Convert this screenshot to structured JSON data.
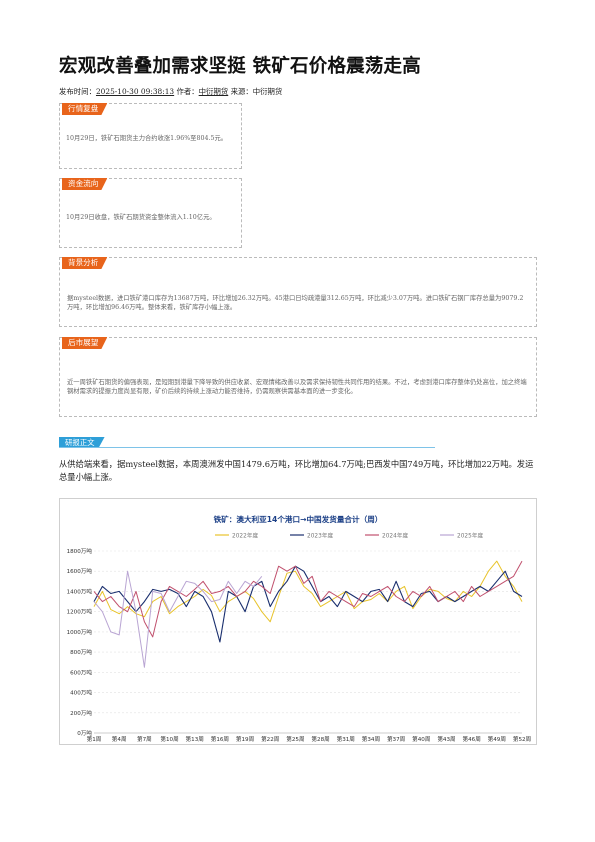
{
  "article": {
    "title": "宏观改善叠加需求坚挺 铁矿石价格震荡走高",
    "meta_prefix": "发布时间：",
    "publish_time": "2025-10-30 09:38:13",
    "author_label": " 作者：",
    "author": "中衍期货",
    "source_label": " 来源：",
    "source": "中衍期货"
  },
  "boxes": {
    "market_review": {
      "tag": "行情复盘",
      "text": "10月29日，铁矿石期货主力合约收涨1.96%至804.5元。"
    },
    "fund_flow": {
      "tag": "资金流向",
      "text": "10月29日收盘，铁矿石期货资金整体流入1.10亿元。"
    },
    "background": {
      "tag": "背景分析",
      "text": "据mysteel数据，进口铁矿港口库存为13687万吨，环比增加26.32万吨。45港口日均疏港量312.65万吨，环比减少3.07万吨。进口铁矿石钢厂库存总量为9079.2万吨，环比增加96.46万吨。整体来看，铁矿库存小幅上涨。"
    },
    "outlook": {
      "tag": "后市展望",
      "text": "近一周铁矿石期货的偏强表现，是短期到港量下降导致的供应收紧、宏观情绪改善以及需求保持韧性共同作用的结果。不过，考虑到港口库存整体仍处高位，加之终端钢材需求的提振力度尚显有限，矿价后续的持续上涨动力能否维持，仍需观察供需基本面的进一步变化。"
    }
  },
  "report": {
    "tag": "研报正文",
    "paragraph": "从供给端来看，据mysteel数据，本周澳洲发中国1479.6万吨，环比增加64.7万吨;巴西发中国749万吨，环比增加22万吨。发运总量小幅上涨。"
  },
  "chart_data": {
    "type": "line",
    "title": "铁矿：澳大利亚14个港口→中国发货量合计（周）",
    "x_ticks": [
      "第1周",
      "第4周",
      "第7周",
      "第10周",
      "第13周",
      "第16周",
      "第19周",
      "第22周",
      "第25周",
      "第28周",
      "第31周",
      "第34周",
      "第37周",
      "第40周",
      "第43周",
      "第46周",
      "第49周",
      "第52周"
    ],
    "y_ticks": [
      "0万吨",
      "200万吨",
      "400万吨",
      "600万吨",
      "800万吨",
      "1000万吨",
      "1200万吨",
      "1400万吨",
      "1600万吨",
      "1800万吨"
    ],
    "ylim": [
      0,
      1800
    ],
    "xlim": [
      1,
      52
    ],
    "legend_position": "top",
    "series": [
      {
        "name": "2022年度",
        "color": "#e8c32a",
        "values": [
          1250,
          1400,
          1220,
          1180,
          1250,
          1180,
          1150,
          1300,
          1350,
          1180,
          1250,
          1300,
          1350,
          1420,
          1360,
          1200,
          1300,
          1350,
          1400,
          1330,
          1200,
          1100,
          1350,
          1580,
          1600,
          1450,
          1380,
          1250,
          1300,
          1350,
          1400,
          1230,
          1300,
          1320,
          1380,
          1300,
          1400,
          1450,
          1230,
          1350,
          1420,
          1400,
          1330,
          1300,
          1400,
          1350,
          1450,
          1600,
          1700,
          1550,
          1450,
          1300
        ],
        "pixel_source": ""
      },
      {
        "name": "2023年度",
        "color": "#1a2f6e",
        "values": [
          1300,
          1450,
          1380,
          1400,
          1300,
          1200,
          1300,
          1420,
          1400,
          1420,
          1380,
          1250,
          1400,
          1350,
          1200,
          900,
          1400,
          1350,
          1200,
          1450,
          1500,
          1250,
          1400,
          1500,
          1650,
          1600,
          1450,
          1300,
          1350,
          1250,
          1400,
          1350,
          1300,
          1400,
          1420,
          1300,
          1500,
          1300,
          1250,
          1380,
          1400,
          1300,
          1350,
          1300,
          1350,
          1400,
          1450,
          1400,
          1500,
          1600,
          1400,
          1350
        ],
        "pixel_source": ""
      },
      {
        "name": "2024年度",
        "color": "#c0506d",
        "values": [
          1400,
          1300,
          1350,
          1250,
          1200,
          1400,
          1100,
          950,
          1300,
          1450,
          1400,
          1350,
          1420,
          1500,
          1380,
          1400,
          1450,
          1350,
          1400,
          1500,
          1450,
          1380,
          1650,
          1600,
          1650,
          1480,
          1550,
          1300,
          1400,
          1350,
          1300,
          1250,
          1380,
          1350,
          1400,
          1450,
          1350,
          1300,
          1400,
          1350,
          1450,
          1300,
          1350,
          1400,
          1300,
          1450,
          1350,
          1400,
          1450,
          1500,
          1550,
          1700
        ],
        "pixel_source": ""
      },
      {
        "name": "2025年度",
        "color": "#b9a5d3",
        "values": [
          1300,
          1200,
          1000,
          970,
          1600,
          1200,
          650,
          1400,
          1380,
          1200,
          1350,
          1500,
          1480,
          1400,
          1300,
          1320,
          1500,
          1380,
          1500,
          1450,
          1550,
          null,
          null,
          null,
          null,
          null,
          null,
          null,
          null,
          null,
          null,
          null,
          null,
          null,
          null,
          null,
          null,
          null,
          null,
          null,
          null,
          null,
          null,
          null,
          null,
          null,
          null,
          null,
          null,
          null,
          null,
          null
        ],
        "pixel_source": ""
      }
    ]
  }
}
